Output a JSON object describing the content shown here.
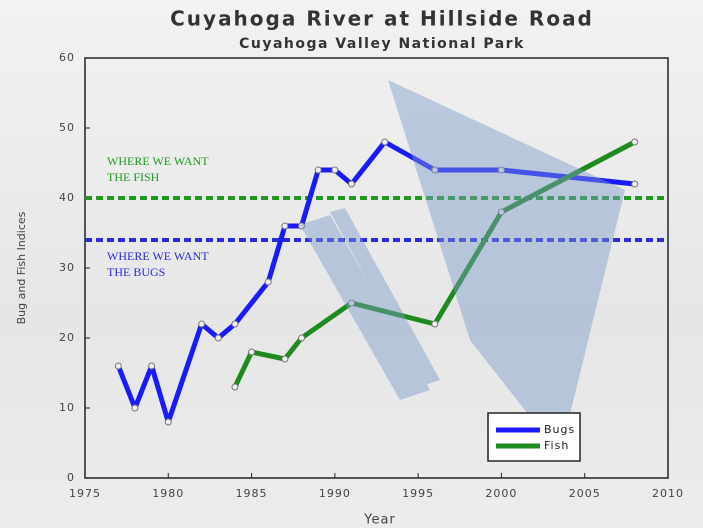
{
  "chart_data": {
    "type": "line",
    "title": "Cuyahoga River at Hillside Road",
    "subtitle": "Cuyahoga Valley National Park",
    "x_label": "Year",
    "y_label": "Bug and Fish Indices",
    "xlim": [
      1975,
      2010
    ],
    "xticks": [
      1975,
      1980,
      1985,
      1990,
      1995,
      2000,
      2005,
      2010
    ],
    "ylim": [
      0,
      60
    ],
    "yticks": [
      0,
      10,
      20,
      30,
      40,
      50,
      60
    ],
    "legend": "lower right",
    "series": [
      {
        "name": "Bugs",
        "color": "#1a1aff",
        "x": [
          1977,
          1978,
          1979,
          1980,
          1982,
          1983,
          1984,
          1986,
          1987,
          1988,
          1989,
          1990,
          1991,
          1993,
          1996,
          2000,
          2008
        ],
        "values": [
          16,
          10,
          16,
          8,
          22,
          20,
          22,
          28,
          36,
          36,
          44,
          44,
          42,
          48,
          44,
          44,
          42
        ]
      },
      {
        "name": "Fish",
        "color": "#1f8a1f",
        "x": [
          1984,
          1985,
          1987,
          1988,
          1991,
          1996,
          2000,
          2008
        ],
        "values": [
          13,
          18,
          17,
          20,
          25,
          22,
          38,
          48
        ]
      }
    ],
    "reference_lines": [
      {
        "value": 40,
        "color": "#1f9a1f",
        "label": [
          "WHERE WE WANT",
          "THE FISH"
        ]
      },
      {
        "value": 34,
        "color": "#2a2ae0",
        "label": [
          "WHERE WE WANT",
          "THE BUGS"
        ]
      }
    ]
  }
}
